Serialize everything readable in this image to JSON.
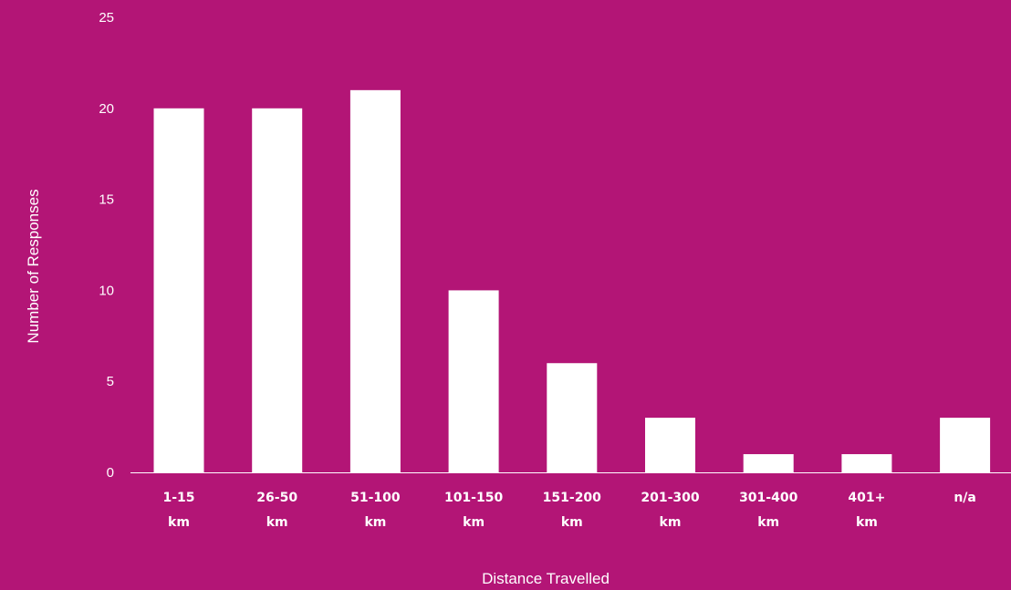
{
  "chart_data": {
    "type": "bar",
    "categories": [
      [
        "1-15",
        "km"
      ],
      [
        "26-50",
        "km"
      ],
      [
        "51-100",
        "km"
      ],
      [
        "101-150",
        "km"
      ],
      [
        "151-200",
        "km"
      ],
      [
        "201-300",
        "km"
      ],
      [
        "301-400",
        "km"
      ],
      [
        "401+",
        "km"
      ],
      [
        "n/a"
      ]
    ],
    "values": [
      20,
      20,
      21,
      10,
      6,
      3,
      1,
      1,
      3
    ],
    "xlabel": "Distance Travelled",
    "ylabel": "Number of Responses",
    "ylim": [
      0,
      25
    ],
    "yticks": [
      0,
      5,
      10,
      15,
      20,
      25
    ],
    "grid": false,
    "colors": {
      "background": "#b31576",
      "bar": "#ffffff",
      "text": "#ffffff"
    }
  }
}
